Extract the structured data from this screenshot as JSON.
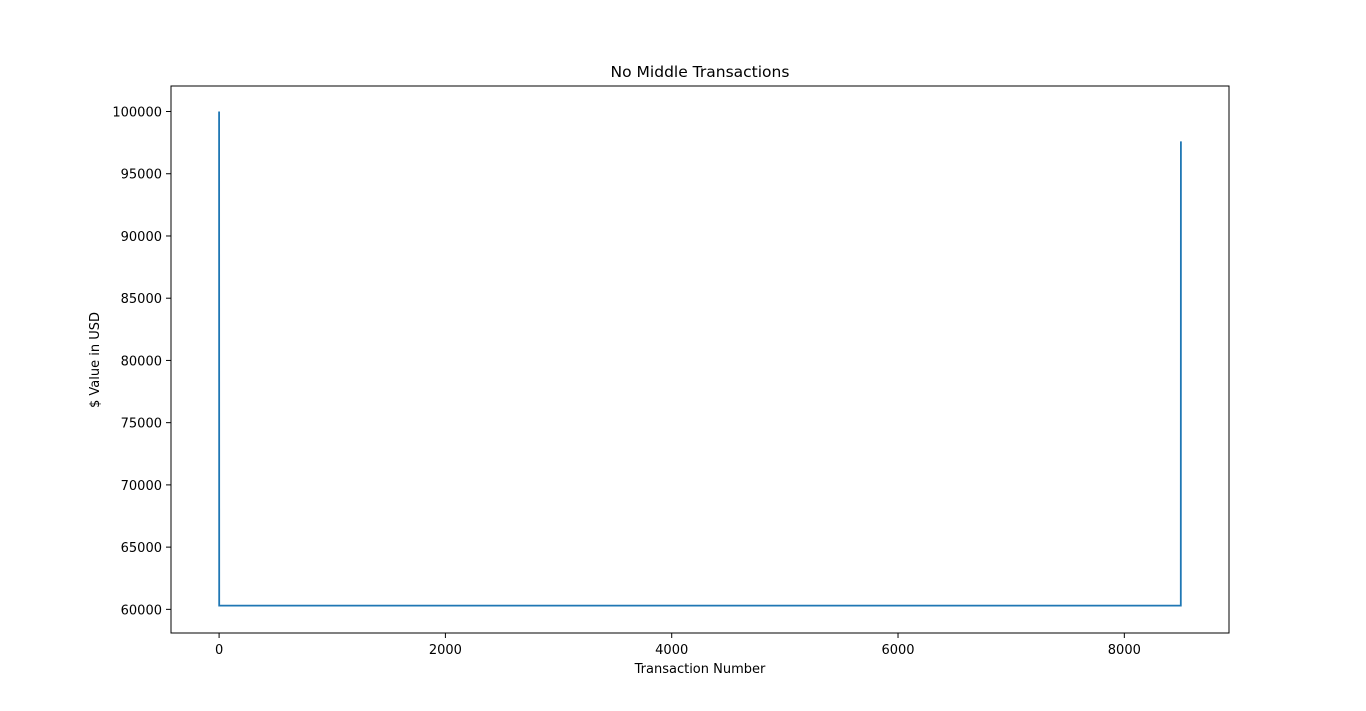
{
  "chart_data": {
    "type": "line",
    "title": "No Middle Transactions",
    "xlabel": "Transaction Number",
    "ylabel": "$ Value in USD",
    "xlim": [
      -425,
      8925
    ],
    "ylim": [
      58100,
      102050
    ],
    "xticks": [
      0,
      2000,
      4000,
      6000,
      8000
    ],
    "xtick_labels": [
      "0",
      "2000",
      "4000",
      "6000",
      "8000"
    ],
    "yticks": [
      60000,
      65000,
      70000,
      75000,
      80000,
      85000,
      90000,
      95000,
      100000
    ],
    "ytick_labels": [
      "60000",
      "65000",
      "70000",
      "75000",
      "80000",
      "85000",
      "90000",
      "95000",
      "100000"
    ],
    "grid": false,
    "legend": "none",
    "line_color": "#1f77b4",
    "series": [
      {
        "x": [
          0,
          1,
          8499,
          8500
        ],
        "y": [
          100000,
          60300,
          60300,
          97600
        ]
      }
    ]
  }
}
